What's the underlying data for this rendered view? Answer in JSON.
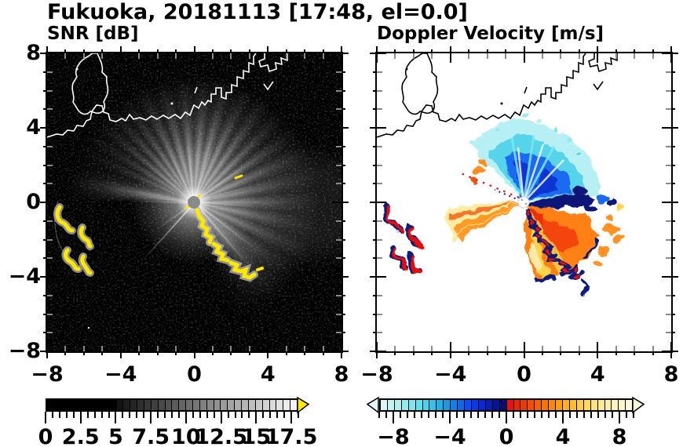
{
  "title": "Fukuoka, 20181113 [17:48, el=0.0]",
  "panels": {
    "snr": {
      "subtitle": "SNR [dB]"
    },
    "velocity": {
      "subtitle": "Doppler Velocity [m/s]"
    }
  },
  "axes": {
    "xlim": [
      -8,
      8
    ],
    "ylim": [
      -8,
      8
    ],
    "major_ticks": [
      -8,
      -4,
      0,
      4,
      8
    ],
    "minor_step": 1,
    "x_tick_labels": [
      "−8",
      "−4",
      "0",
      "4",
      "8"
    ],
    "y_tick_labels": [
      "−8",
      "−4",
      "0",
      "4",
      "8"
    ]
  },
  "colorbars": {
    "snr": {
      "min": 0,
      "max": 18,
      "minor_step": 0.5,
      "tick_values": [
        0,
        2.5,
        5,
        7.5,
        10,
        12.5,
        15,
        17.5
      ],
      "tick_labels": [
        "0",
        "2.5",
        "5",
        "7.5",
        "10",
        "12.5",
        "15",
        "17.5"
      ],
      "arrow_left": null,
      "arrow_right": "#ffe800",
      "segments": [
        "#000000",
        "#000000",
        "#000000",
        "#000000",
        "#000000",
        "#000000",
        "#000000",
        "#000000",
        "#000000",
        "#000000",
        "#131313",
        "#1c1c1c",
        "#252525",
        "#2e2e2e",
        "#373737",
        "#404040",
        "#494949",
        "#525252",
        "#5b5b5b",
        "#646464",
        "#6d6d6d",
        "#777777",
        "#808080",
        "#898989",
        "#929292",
        "#9b9b9b",
        "#a4a4a4",
        "#adadad",
        "#b6b6b6",
        "#bfbfbf",
        "#c8c8c8",
        "#d1d1d1",
        "#dadada",
        "#e3e3e3",
        "#ececec",
        "#f5f5f5"
      ]
    },
    "velocity": {
      "min": -9,
      "max": 9,
      "minor_step": 0.5,
      "tick_values": [
        -8,
        -4,
        0,
        4,
        8
      ],
      "tick_labels": [
        "−8",
        "−4",
        "0",
        "4",
        "8"
      ],
      "arrow_left": "#dffafa",
      "arrow_right": "#fbf7d8",
      "segments": [
        "#d9f7f7",
        "#c4f3f5",
        "#aff0f3",
        "#96ebf1",
        "#7de6ee",
        "#62dfee",
        "#47d4ec",
        "#2fc4e8",
        "#1fb0e4",
        "#1899e0",
        "#1281e6",
        "#0d68ee",
        "#0a4ff5",
        "#0839f2",
        "#0729d8",
        "#061fb4",
        "#051690",
        "#040e6e",
        "#e81010",
        "#ec2408",
        "#f03804",
        "#f44c02",
        "#f76002",
        "#fa7404",
        "#fc8808",
        "#fe9b10",
        "#ffae1c",
        "#ffbe30",
        "#ffcc48",
        "#ffd860",
        "#ffe278",
        "#ffe990",
        "#ffefa6",
        "#fff4ba",
        "#fff7ca",
        "#fdf8d6"
      ]
    }
  },
  "chart_data": {
    "type": "heatmap",
    "title": "Fukuoka, 20181113 [17:48, el=0.0]",
    "layout": "two radar PPI panels side by side, shared x/y range, colorbar under each panel",
    "panels": [
      {
        "title": "SNR [dB]",
        "xlim": [
          -8,
          8
        ],
        "ylim": [
          -8,
          8
        ],
        "x_ticks": [
          -8,
          -4,
          0,
          4,
          8
        ],
        "y_ticks": [
          -8,
          -4,
          0,
          4,
          8
        ],
        "colorbar": {
          "range": [
            0,
            18
          ],
          "ticks": [
            0,
            2.5,
            5,
            7.5,
            10,
            12.5,
            15,
            17.5
          ],
          "scale": "grayscale black-to-white, yellow overflow arrow at right"
        },
        "features": [
          {
            "name": "radar-site",
            "x": 0,
            "y": 0,
            "desc": "gray disk at panel center"
          },
          {
            "name": "coastline",
            "color": "white",
            "desc": "Fukuoka coast across upper half, island blob upper-left, harbor piers upper-right"
          },
          {
            "name": "bright-echo-fan",
            "desc": "grayscale radial streaks from radar, bearings ~NW through N and E to SE, radius ~1-6, dark wedges toward SW and S"
          },
          {
            "name": "high-snr-arcs",
            "color": "yellow",
            "desc": "arcs near x -7.3..-5.6, y -0.3..-3.8"
          },
          {
            "name": "high-snr-chain",
            "color": "yellow",
            "desc": "chain from (0.2,-0.5) to (3.3,-3.9)"
          }
        ]
      },
      {
        "title": "Doppler Velocity [m/s]",
        "xlim": [
          -8,
          8
        ],
        "ylim": [
          -8,
          8
        ],
        "x_ticks": [
          -8,
          -4,
          0,
          4,
          8
        ],
        "y_ticks": [
          -8,
          -4,
          0,
          4,
          8
        ],
        "colorbar": {
          "range": [
            -9,
            9
          ],
          "ticks": [
            -8,
            -4,
            0,
            4,
            8
          ],
          "scale": "cyan-blue-navy for negative, red-orange-yellow for positive"
        },
        "features": [
          {
            "name": "radar-site",
            "x": 0,
            "y": 0,
            "desc": "white disk at panel center"
          },
          {
            "name": "coastline",
            "color": "black"
          },
          {
            "name": "negative-velocity-fan",
            "colors": "cyan/blue/navy",
            "desc": "fan north and east of radar, radius ~1-4.5"
          },
          {
            "name": "positive-velocity-fan",
            "colors": "yellow/orange/red",
            "desc": "wedge toward WSW and broad mass south to southeast of radar, navy aliasing fringes"
          },
          {
            "name": "clutter-arcs",
            "colors": "red/navy",
            "desc": "arcs near x -7.3..-5.6, y -0.3..-3.8 and chain (0.2,-0.5) to (3.3,-3.9)"
          },
          {
            "name": "dotted-ray",
            "color": "red",
            "desc": "thin dotted radial line toward NW"
          }
        ]
      }
    ]
  }
}
